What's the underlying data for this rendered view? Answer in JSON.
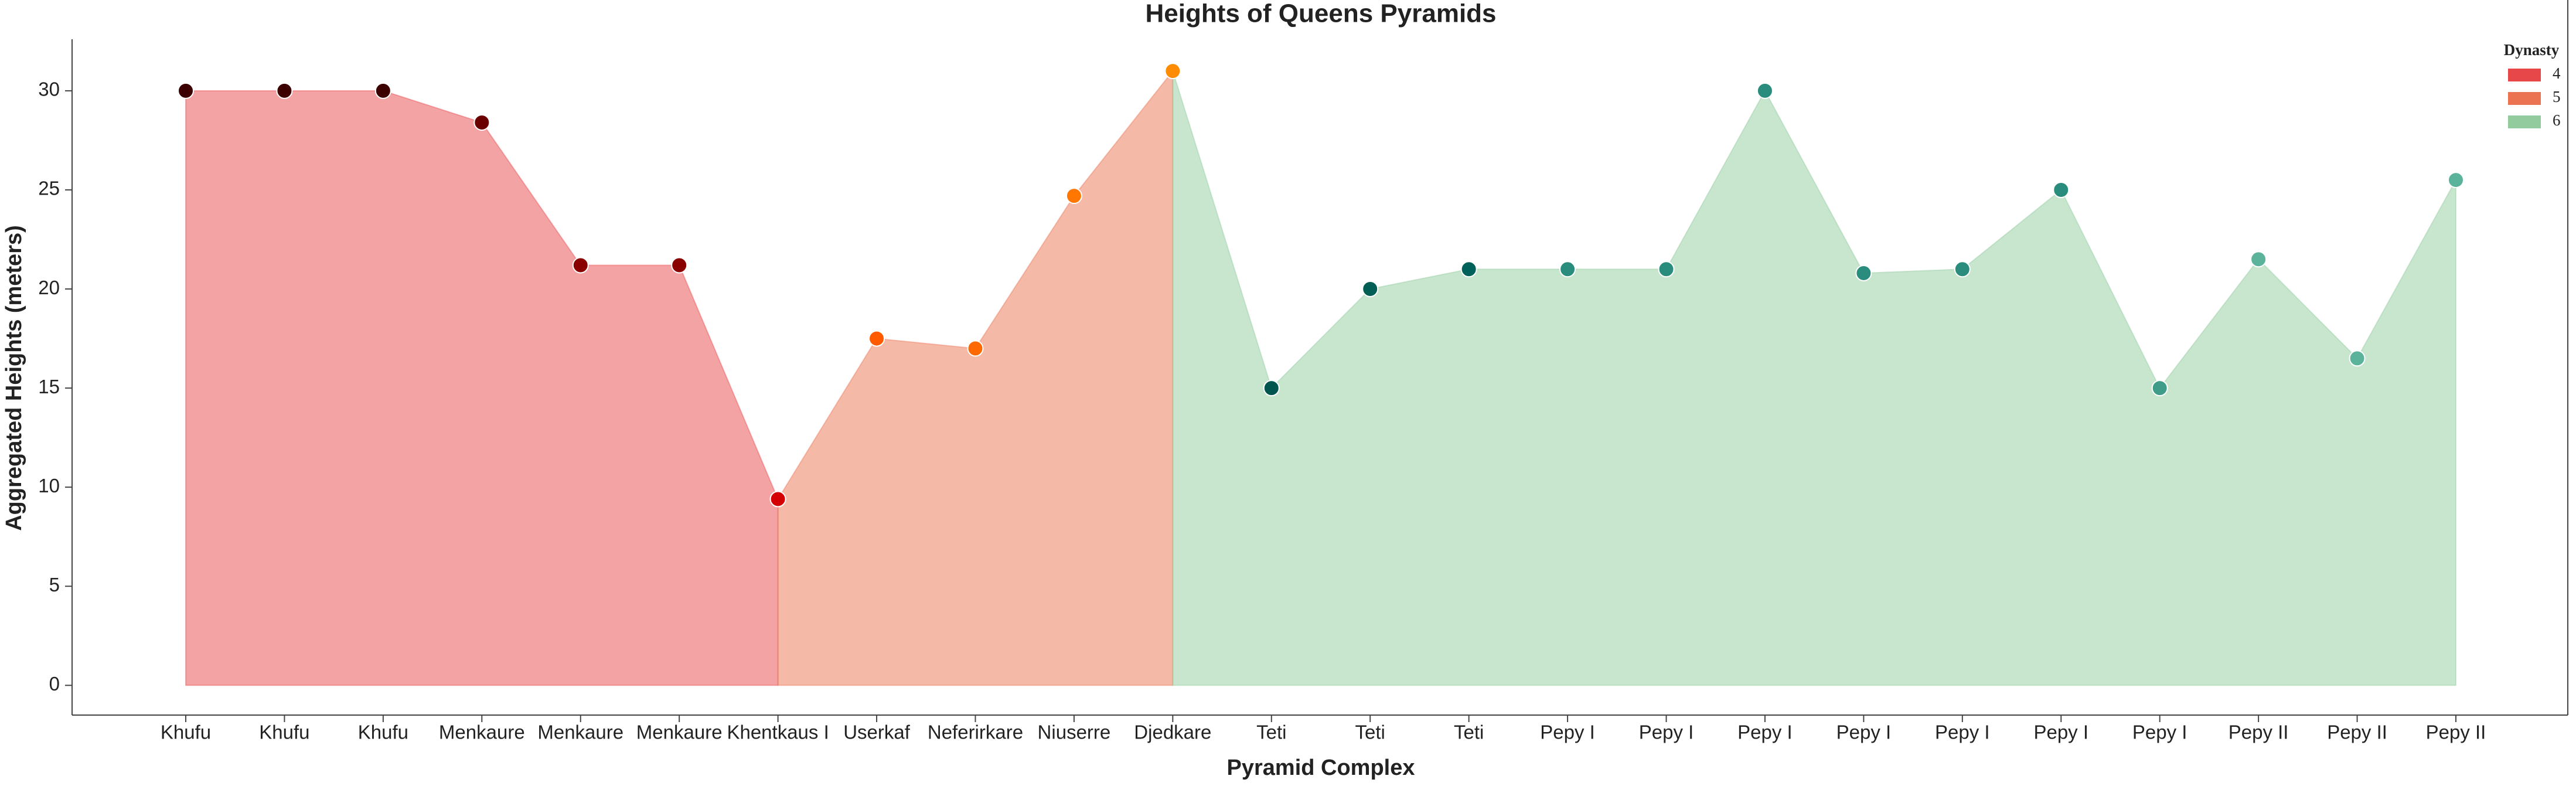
{
  "chart_data": {
    "type": "area",
    "title": "Heights of Queens Pyramids",
    "x_label": "Pyramid Complex",
    "y_label": "Aggregated Heights (meters)",
    "legend_title": "Dynasty",
    "legend_position": "upper right",
    "categories": [
      "Khufu",
      "Khufu",
      "Khufu",
      "Menkaure",
      "Menkaure",
      "Menkaure",
      "Khentkaus I",
      "Userkaf",
      "Neferirkare",
      "Niuserre",
      "Djedkare",
      "Teti",
      "Teti",
      "Teti",
      "Pepy I",
      "Pepy I",
      "Pepy I",
      "Pepy I",
      "Pepy I",
      "Pepy I",
      "Pepy I",
      "Pepy II",
      "Pepy II",
      "Pepy II"
    ],
    "series": [
      {
        "name": "4",
        "color": "#e8474a",
        "values": [
          30,
          30,
          30,
          28.4,
          21.2,
          21.2,
          9.4,
          null,
          null,
          null,
          null,
          null,
          null,
          null,
          null,
          null,
          null,
          null,
          null,
          null,
          null,
          null,
          null,
          null
        ],
        "point_colors": [
          "#3d0000",
          "#3d0000",
          "#3d0000",
          "#6b0000",
          "#8a0000",
          "#8a0000",
          "#d40000",
          null,
          null,
          null,
          null,
          null,
          null,
          null,
          null,
          null,
          null,
          null,
          null,
          null,
          null,
          null,
          null,
          null
        ]
      },
      {
        "name": "5",
        "color": "#ec7352",
        "values": [
          null,
          null,
          null,
          null,
          null,
          null,
          null,
          17.5,
          17,
          24.7,
          31,
          null,
          null,
          null,
          null,
          null,
          null,
          null,
          null,
          null,
          null,
          null,
          null,
          null
        ],
        "point_colors": [
          null,
          null,
          null,
          null,
          null,
          null,
          null,
          "#ff5a00",
          "#ff6a00",
          "#ff7600",
          "#ff8c00",
          null,
          null,
          null,
          null,
          null,
          null,
          null,
          null,
          null,
          null,
          null,
          null,
          null
        ]
      },
      {
        "name": "6",
        "color": "#92cb9e",
        "values": [
          null,
          null,
          null,
          null,
          null,
          null,
          null,
          null,
          null,
          null,
          null,
          15,
          20,
          21,
          21,
          21,
          30,
          20.8,
          21,
          25,
          15,
          21.5,
          16.5,
          25.5
        ],
        "point_colors": [
          null,
          null,
          null,
          null,
          null,
          null,
          null,
          null,
          null,
          null,
          null,
          "#00564f",
          "#005e55",
          "#00615a",
          "#2a8c7c",
          "#2a8c7c",
          "#2a8c7c",
          "#2a8c7c",
          "#2a8c7c",
          "#2a8c7c",
          "#3f9c88",
          "#5ab39a",
          "#5ab39a",
          "#5ab39a"
        ]
      }
    ],
    "area_opacity": 0.5,
    "ylim": [
      -1.5,
      32.6
    ],
    "yticks": [
      0,
      5,
      10,
      15,
      20,
      25,
      30
    ]
  }
}
